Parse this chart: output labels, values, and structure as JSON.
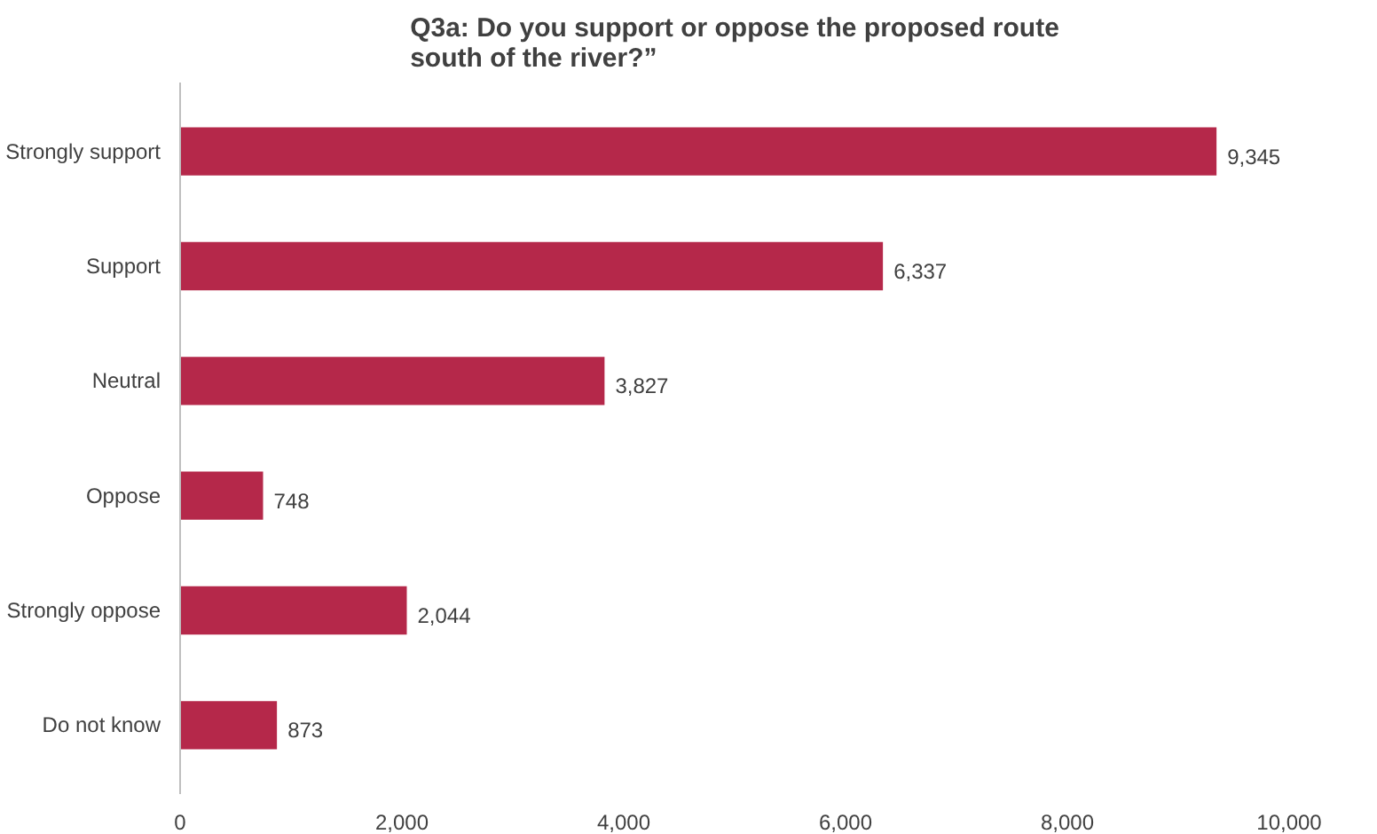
{
  "chart_data": {
    "type": "bar",
    "orientation": "horizontal",
    "title": "Q3a: Do you support or oppose the proposed route south of the river?”",
    "categories": [
      "Strongly support",
      "Support",
      "Neutral",
      "Oppose",
      "Strongly oppose",
      "Do not know"
    ],
    "values": [
      9345,
      6337,
      3827,
      748,
      2044,
      873
    ],
    "value_labels": [
      "9,345",
      "6,337",
      "3,827",
      "748",
      "2,044",
      "873"
    ],
    "color": "#b5284a",
    "xlim": [
      0,
      10000
    ],
    "xticks": [
      0,
      {
        "value": 2000,
        "label": "2,000"
      },
      {
        "value": 4000,
        "label": "4,000"
      },
      {
        "value": 6000,
        "label": "6,000"
      },
      {
        "value": 8000,
        "label": "8,000"
      },
      {
        "value": 10000,
        "label": "10,000"
      }
    ],
    "grid": false
  }
}
